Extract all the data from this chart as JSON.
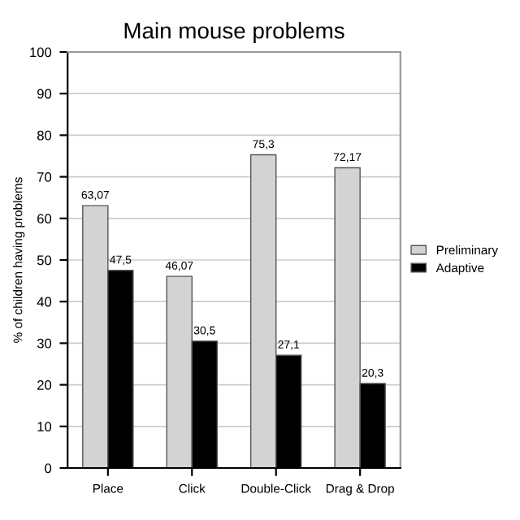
{
  "chart_data": {
    "type": "bar",
    "title": "Main mouse problems",
    "ylabel": "% of children having problems",
    "categories": [
      "Place",
      "Click",
      "Double-Click",
      "Drag & Drop"
    ],
    "series": [
      {
        "name": "Preliminary",
        "color": "#d3d3d3",
        "values": [
          63.07,
          46.07,
          75.3,
          72.17
        ],
        "value_labels": [
          "63,07",
          "46,07",
          "75,3",
          "72,17"
        ]
      },
      {
        "name": "Adaptive",
        "color": "#000000",
        "values": [
          47.5,
          30.5,
          27.1,
          20.3
        ],
        "value_labels": [
          "47,5",
          "30,5",
          "27,1",
          "20,3"
        ]
      }
    ],
    "ylim": [
      0,
      100
    ],
    "yticks": [
      0,
      10,
      20,
      30,
      40,
      50,
      60,
      70,
      80,
      90,
      100
    ],
    "grid": "y",
    "legend": "right"
  }
}
